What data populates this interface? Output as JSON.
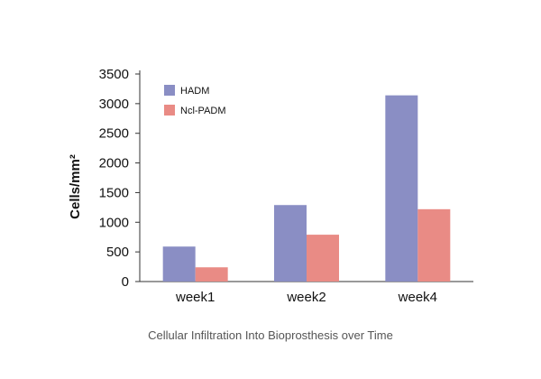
{
  "chart_data": {
    "type": "bar",
    "title": "",
    "caption": "Cellular Infiltration Into Bioprosthesis over Time",
    "xlabel": "",
    "ylabel": "Cells/mm²",
    "categories": [
      "week1",
      "week2",
      "week4"
    ],
    "series": [
      {
        "name": "HADM",
        "color": "#8a8ec4",
        "values": [
          590,
          1290,
          3140
        ]
      },
      {
        "name": "Ncl-PADM",
        "color": "#e98b85",
        "values": [
          240,
          790,
          1220
        ]
      }
    ],
    "ylim": [
      0,
      3500
    ],
    "yticks": [
      0,
      500,
      1000,
      1500,
      2000,
      2500,
      3000,
      3500
    ],
    "legend_position": "top-left",
    "grid": false
  }
}
